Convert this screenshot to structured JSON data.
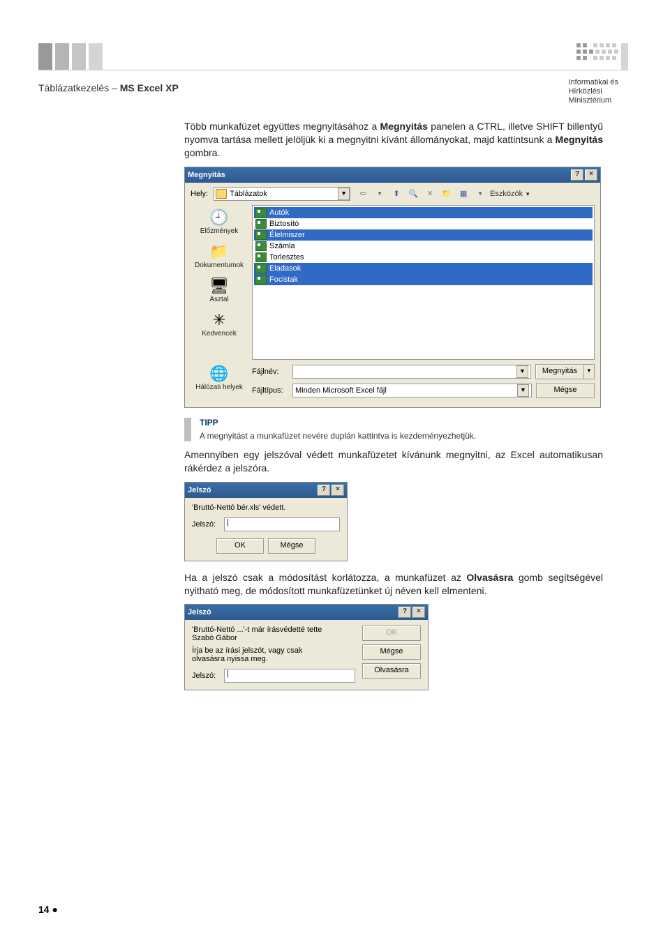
{
  "header": {
    "title_prefix": "Táblázatkezelés – ",
    "title_bold": "MS Excel XP",
    "org_line1": "Informatikai és",
    "org_line2": "Hírközlési",
    "org_line3": "Minisztérium"
  },
  "paragraph1": {
    "part1": "Több munkafüzet együttes megnyitásához a ",
    "bold1": "Megnyitás",
    "part2": " panelen a CTRL, illetve SHIFT billentyű nyomva tartása mellett jelöljük ki a megnyitni kívánt állományokat, majd kattintsunk a ",
    "bold2": "Megnyitás",
    "part3": " gombra."
  },
  "dialog1": {
    "title": "Megnyitás",
    "look_label": "Hely:",
    "look_value": "Táblázatok",
    "tools_label": "Eszközök",
    "sidebar": [
      {
        "icon": "🕘",
        "label": "Előzmények"
      },
      {
        "icon": "📁",
        "label": "Dokumentumok"
      },
      {
        "icon": "🖥",
        "label": "Asztal"
      },
      {
        "icon": "✳",
        "label": "Kedvencek"
      },
      {
        "icon": "🌐",
        "label": "Hálózati helyek"
      }
    ],
    "files": [
      {
        "name": "Autók",
        "selected": true
      },
      {
        "name": "Biztosító",
        "selected": false
      },
      {
        "name": "Élelmiszer",
        "selected": true
      },
      {
        "name": "Számla",
        "selected": false
      },
      {
        "name": "Torlesztes",
        "selected": false
      },
      {
        "name": "Eladasok",
        "selected": true
      },
      {
        "name": "Focistak",
        "selected": true
      }
    ],
    "filename_label": "Fájlnév:",
    "filename_value": "",
    "filetype_label": "Fájltípus:",
    "filetype_value": "Minden Microsoft Excel fájl",
    "open_btn": "Megnyitás",
    "cancel_btn": "Mégse"
  },
  "tip": {
    "title": "TIPP",
    "text": "A megnyitást a munkafüzet nevére duplán kattintva is kezdeményezhetjük."
  },
  "paragraph2": "Amennyiben egy jelszóval védett munkafüzetet kívánunk megnyitni, az Excel automatikusan rákérdez a jelszóra.",
  "dialog2": {
    "title": "Jelszó",
    "protected_text": "'Bruttó-Nettó bér.xls' védett.",
    "password_label": "Jelszó:",
    "ok_btn": "OK",
    "cancel_btn": "Mégse"
  },
  "paragraph3": {
    "part1": "Ha a jelszó csak a módosítást korlátozza, a munkafüzet az ",
    "bold1": "Olvasásra",
    "part2": " gomb segítségével nyitható meg, de módosított munkafüzetünket új néven kell elmenteni."
  },
  "dialog3": {
    "title": "Jelszó",
    "line1": "'Bruttó-Nettó ...'-t már írásvédetté tette",
    "line2": "Szabó Gábor",
    "line3": "Írja be az írási jelszót, vagy csak",
    "line4": "olvasásra nyissa meg.",
    "password_label": "Jelszó:",
    "ok_btn": "OK",
    "cancel_btn": "Mégse",
    "readonly_btn": "Olvasásra"
  },
  "footer": {
    "page_number": "14",
    "bullet": "●"
  }
}
